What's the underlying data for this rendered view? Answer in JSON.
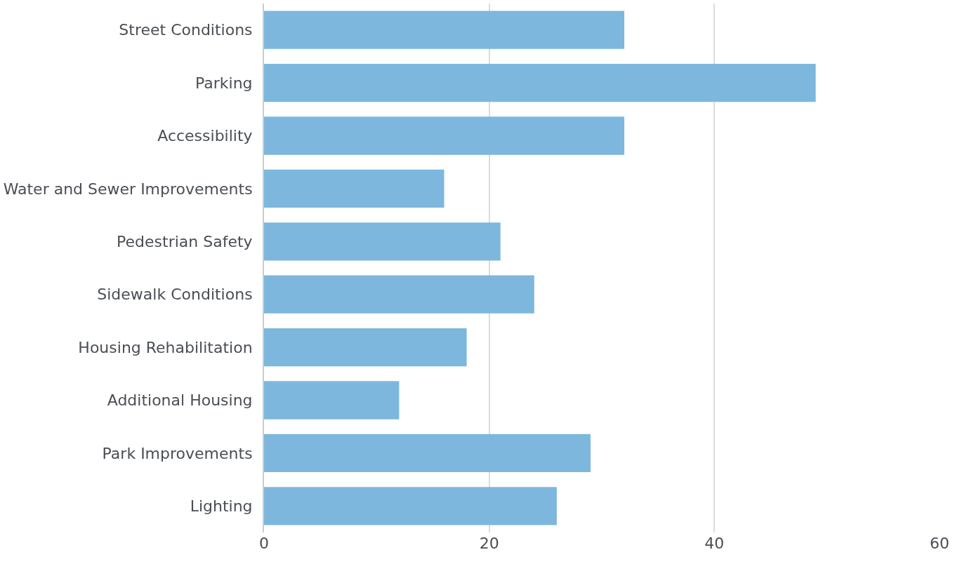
{
  "chart_data": {
    "type": "bar",
    "orientation": "horizontal",
    "categories": [
      "Street Conditions",
      "Parking",
      "Accessibility",
      "Water and Sewer Improvements",
      "Pedestrian Safety",
      "Sidewalk Conditions",
      "Housing Rehabilitation",
      "Additional Housing",
      "Park Improvements",
      "Lighting"
    ],
    "values": [
      32,
      49,
      32,
      16,
      21,
      24,
      18,
      12,
      29,
      26
    ],
    "color": "#7db7dd",
    "xlim": [
      0,
      60
    ],
    "xticks": [
      0,
      20,
      40,
      60
    ],
    "grid": "x",
    "legend": false
  }
}
